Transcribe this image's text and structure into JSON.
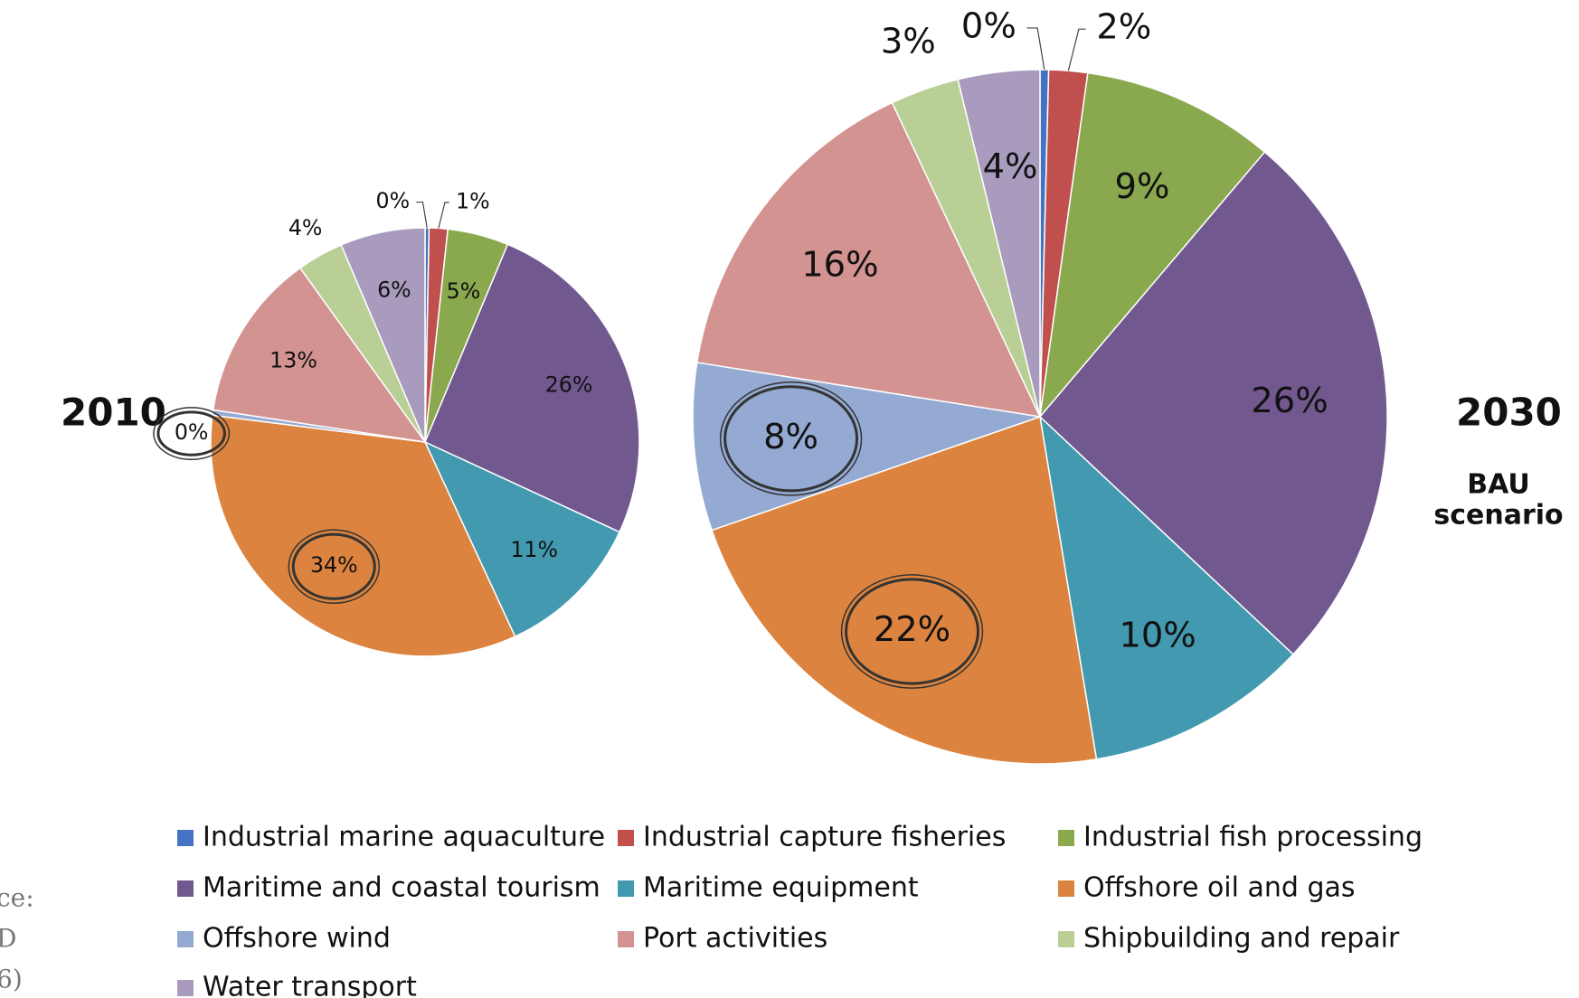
{
  "chart_data": [
    {
      "type": "pie",
      "title": "2010",
      "categories": [
        "Industrial marine aquaculture",
        "Industrial capture fisheries",
        "Industrial fish processing",
        "Maritime and coastal tourism",
        "Maritime equipment",
        "Offshore oil and gas",
        "Offshore wind",
        "Port activities",
        "Shipbuilding and repair",
        "Water transport"
      ],
      "values": [
        0.3,
        1.4,
        4.6,
        25.6,
        11.2,
        33.9,
        0.4,
        12.7,
        3.5,
        6.4
      ],
      "value_labels": [
        "0%",
        "1%",
        "5%",
        "26%",
        "11%",
        "34%",
        "0%",
        "13%",
        "4%",
        "6%"
      ],
      "colors": [
        "#4472c4",
        "#c0504d",
        "#8aa84e",
        "#71588f",
        "#4299b0",
        "#dc843f",
        "#94aad2",
        "#d39391",
        "#b9cf96",
        "#a99bbd"
      ]
    },
    {
      "type": "pie",
      "title": "2030",
      "subtitle": [
        "BAU",
        "scenario"
      ],
      "categories": [
        "Industrial marine aquaculture",
        "Industrial capture fisheries",
        "Industrial fish processing",
        "Maritime and coastal tourism",
        "Maritime equipment",
        "Offshore oil and gas",
        "Offshore wind",
        "Port activities",
        "Shipbuilding and repair",
        "Water transport"
      ],
      "values": [
        0.4,
        1.8,
        9.0,
        25.8,
        10.4,
        22.3,
        7.8,
        15.5,
        3.2,
        3.8
      ],
      "value_labels": [
        "0%",
        "2%",
        "9%",
        "26%",
        "10%",
        "22%",
        "8%",
        "16%",
        "3%",
        "4%"
      ],
      "colors": [
        "#4472c4",
        "#c0504d",
        "#8aa84e",
        "#71588f",
        "#4299b0",
        "#dc843f",
        "#94aad2",
        "#d39391",
        "#b9cf96",
        "#a99bbd"
      ]
    }
  ],
  "side_text": [
    "ce:",
    "D",
    "6)"
  ]
}
